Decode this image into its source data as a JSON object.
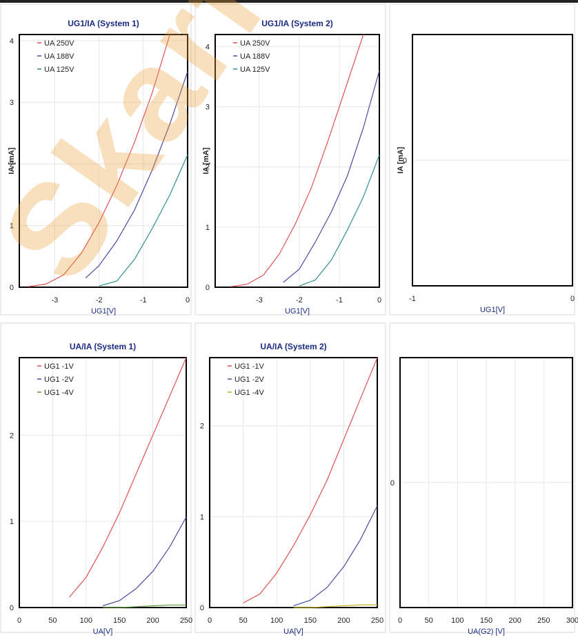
{
  "chart_data": [
    {
      "type": "line",
      "title": "UG1/IA (System 1)",
      "xlabel": "UG1[V]",
      "ylabel": "IA [mA]",
      "xlim": [
        -3.8,
        0
      ],
      "ylim": [
        0,
        4.1
      ],
      "xticks": [
        "-3",
        "-2",
        "-1",
        "0"
      ],
      "yticks": [
        "0",
        "1",
        "2",
        "3",
        "4"
      ],
      "xtick_values": [
        -3,
        -2,
        -1,
        0
      ],
      "ytick_values": [
        0,
        1,
        2,
        3,
        4
      ],
      "legend": "top-left",
      "series": [
        {
          "name": "UA 250V",
          "color": "#e05050",
          "x": [
            -3.6,
            -3.2,
            -2.8,
            -2.4,
            -2.0,
            -1.6,
            -1.2,
            -0.8,
            -0.4
          ],
          "y": [
            0.01,
            0.05,
            0.2,
            0.55,
            1.05,
            1.65,
            2.35,
            3.15,
            4.1
          ]
        },
        {
          "name": "UA 188V",
          "color": "#4a4aa0",
          "x": [
            -2.3,
            -2.0,
            -1.6,
            -1.2,
            -0.8,
            -0.4,
            0.0
          ],
          "y": [
            0.15,
            0.35,
            0.75,
            1.25,
            1.9,
            2.65,
            3.5
          ]
        },
        {
          "name": "UA 125V",
          "color": "#2f8f8f",
          "x": [
            -2.0,
            -1.6,
            -1.2,
            -0.8,
            -0.4,
            0.0
          ],
          "y": [
            0.02,
            0.1,
            0.45,
            0.95,
            1.5,
            2.15
          ]
        }
      ]
    },
    {
      "type": "line",
      "title": "UG1/IA (System 2)",
      "xlabel": "UG1[V]",
      "ylabel": "IA [mA]",
      "xlim": [
        -4.1,
        0
      ],
      "ylim": [
        0,
        4.2
      ],
      "xticks": [
        "-3",
        "-2",
        "-1",
        "0"
      ],
      "yticks": [
        "0",
        "1",
        "2",
        "3",
        "4"
      ],
      "xtick_values": [
        -3,
        -2,
        -1,
        0
      ],
      "ytick_values": [
        0,
        1,
        2,
        3,
        4
      ],
      "legend": "top-left",
      "series": [
        {
          "name": "UA 250V",
          "color": "#e05050",
          "x": [
            -3.7,
            -3.3,
            -2.9,
            -2.5,
            -2.1,
            -1.7,
            -1.3,
            -0.9,
            -0.4
          ],
          "y": [
            0.01,
            0.05,
            0.2,
            0.55,
            1.05,
            1.65,
            2.4,
            3.2,
            4.2
          ]
        },
        {
          "name": "UA 188V",
          "color": "#4a4aa0",
          "x": [
            -2.4,
            -2.0,
            -1.6,
            -1.2,
            -0.8,
            -0.4,
            0.0
          ],
          "y": [
            0.08,
            0.3,
            0.75,
            1.25,
            1.85,
            2.65,
            3.6
          ]
        },
        {
          "name": "UA 125V",
          "color": "#2f8f8f",
          "x": [
            -2.0,
            -1.6,
            -1.2,
            -0.8,
            -0.4,
            0.0
          ],
          "y": [
            0.02,
            0.12,
            0.45,
            0.95,
            1.5,
            2.2
          ]
        }
      ]
    },
    {
      "type": "line",
      "title": "",
      "xlabel": "UG1[V]",
      "ylabel": "IA [mA]",
      "xlim": [
        -1,
        0
      ],
      "ylim": [
        -1,
        1
      ],
      "xticks": [
        "-1",
        "0"
      ],
      "yticks": [
        "0"
      ],
      "xtick_values": [
        -1,
        0
      ],
      "ytick_values": [
        0
      ],
      "legend": "top-left",
      "series": []
    },
    {
      "type": "line",
      "title": "UA/IA (System 1)",
      "xlabel": "UA[V]",
      "ylabel": "",
      "xlim": [
        0,
        250
      ],
      "ylim": [
        0,
        2.9
      ],
      "xticks": [
        "0",
        "50",
        "100",
        "150",
        "200",
        "250"
      ],
      "yticks": [
        "0",
        "1",
        "2"
      ],
      "xtick_values": [
        0,
        50,
        100,
        150,
        200,
        250
      ],
      "ytick_values": [
        0,
        1,
        2
      ],
      "legend": "top-left",
      "series": [
        {
          "name": "UG1 -1V",
          "color": "#e05050",
          "x": [
            75,
            100,
            125,
            150,
            175,
            200,
            225,
            250
          ],
          "y": [
            0.12,
            0.35,
            0.7,
            1.1,
            1.55,
            2.0,
            2.45,
            2.9
          ]
        },
        {
          "name": "UG1 -2V",
          "color": "#4a4aa0",
          "x": [
            125,
            150,
            175,
            200,
            225,
            250
          ],
          "y": [
            0.02,
            0.08,
            0.22,
            0.42,
            0.7,
            1.05
          ]
        },
        {
          "name": "UG1 -4V",
          "color": "#5a9a3a",
          "x": [
            125,
            150,
            175,
            200,
            225,
            250
          ],
          "y": [
            0.0,
            0.0,
            0.01,
            0.02,
            0.03,
            0.03
          ]
        }
      ]
    },
    {
      "type": "line",
      "title": "UA/IA (System 2)",
      "xlabel": "UA[V]",
      "ylabel": "",
      "xlim": [
        0,
        250
      ],
      "ylim": [
        0,
        2.75
      ],
      "xticks": [
        "0",
        "50",
        "100",
        "150",
        "200",
        "250"
      ],
      "yticks": [
        "0",
        "1",
        "2"
      ],
      "xtick_values": [
        0,
        50,
        100,
        150,
        200,
        250
      ],
      "ytick_values": [
        0,
        1,
        2
      ],
      "legend": "top-left",
      "series": [
        {
          "name": "UG1 -1V",
          "color": "#e05050",
          "x": [
            50,
            75,
            100,
            125,
            150,
            175,
            200,
            225,
            250
          ],
          "y": [
            0.05,
            0.15,
            0.38,
            0.68,
            1.02,
            1.4,
            1.85,
            2.3,
            2.75
          ]
        },
        {
          "name": "UG1 -2V",
          "color": "#4a4aa0",
          "x": [
            125,
            150,
            175,
            200,
            225,
            250
          ],
          "y": [
            0.02,
            0.08,
            0.22,
            0.45,
            0.75,
            1.12
          ]
        },
        {
          "name": "UG1 -4V",
          "color": "#c8b020",
          "x": [
            125,
            150,
            175,
            200,
            225,
            250
          ],
          "y": [
            0.0,
            0.0,
            0.01,
            0.02,
            0.03,
            0.03
          ]
        }
      ]
    },
    {
      "type": "line",
      "title": "",
      "xlabel": "UA(G2) [V]",
      "ylabel": "",
      "xlim": [
        0,
        300
      ],
      "ylim": [
        -1,
        1
      ],
      "xticks": [
        "0",
        "50",
        "100",
        "150",
        "200",
        "250",
        "300"
      ],
      "yticks": [
        "0"
      ],
      "xtick_values": [
        0,
        50,
        100,
        150,
        200,
        250,
        300
      ],
      "ytick_values": [
        0
      ],
      "legend": "top-left",
      "series": []
    }
  ]
}
